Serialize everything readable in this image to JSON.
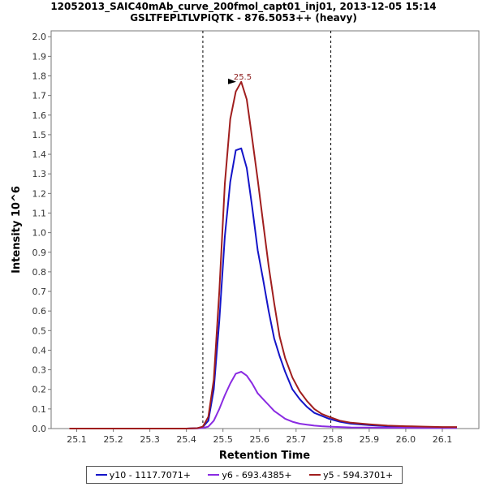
{
  "chart_data": {
    "type": "line",
    "title": "12052013_SAIC40mAb_curve_200fmol_capt01_inj01, 2013-12-05 15:14",
    "subtitle": "GSLTFEPLTLVPIQTK - 876.5053++ (heavy)",
    "xlabel": "Retention Time",
    "ylabel": "Intensity 10^6",
    "xlim": [
      25.03,
      26.2
    ],
    "ylim": [
      0,
      2.03
    ],
    "xticks": [
      25.1,
      25.2,
      25.3,
      25.4,
      25.5,
      25.6,
      25.7,
      25.8,
      25.9,
      26.0,
      26.1
    ],
    "yticks": [
      0.0,
      0.1,
      0.2,
      0.3,
      0.4,
      0.5,
      0.6,
      0.7,
      0.8,
      0.9,
      1.0,
      1.1,
      1.2,
      1.3,
      1.4,
      1.5,
      1.6,
      1.7,
      1.8,
      1.9,
      2.0
    ],
    "boundaries": [
      25.445,
      25.795
    ],
    "peak_annotation": {
      "label": "25.5",
      "x": 25.545,
      "y": 1.77
    },
    "x": [
      25.08,
      25.2,
      25.3,
      25.4,
      25.43,
      25.445,
      25.46,
      25.475,
      25.49,
      25.505,
      25.52,
      25.535,
      25.55,
      25.565,
      25.58,
      25.595,
      25.61,
      25.625,
      25.64,
      25.655,
      25.67,
      25.69,
      25.71,
      25.73,
      25.75,
      25.77,
      25.79,
      25.82,
      25.85,
      25.9,
      25.95,
      26.0,
      26.05,
      26.1,
      26.14
    ],
    "series": [
      {
        "name": "y10 - 1117.7071+",
        "color": "#1414c8",
        "values": [
          0.0,
          0.0,
          0.0,
          0.0,
          0.002,
          0.008,
          0.04,
          0.2,
          0.55,
          0.98,
          1.26,
          1.42,
          1.43,
          1.33,
          1.13,
          0.91,
          0.76,
          0.6,
          0.46,
          0.37,
          0.29,
          0.2,
          0.15,
          0.11,
          0.08,
          0.065,
          0.05,
          0.035,
          0.025,
          0.018,
          0.012,
          0.01,
          0.008,
          0.006,
          0.006
        ]
      },
      {
        "name": "y6 - 693.4385+",
        "color": "#8a2be2",
        "values": [
          0.0,
          0.0,
          0.0,
          0.0,
          0.001,
          0.003,
          0.01,
          0.04,
          0.1,
          0.17,
          0.23,
          0.28,
          0.29,
          0.27,
          0.23,
          0.18,
          0.15,
          0.12,
          0.09,
          0.07,
          0.05,
          0.035,
          0.025,
          0.02,
          0.015,
          0.012,
          0.01,
          0.008,
          0.006,
          0.005,
          0.004,
          0.004,
          0.003,
          0.003,
          0.003
        ]
      },
      {
        "name": "y5 - 594.3701+",
        "color": "#a01e1e",
        "values": [
          0.0,
          0.0,
          0.0,
          0.0,
          0.002,
          0.01,
          0.06,
          0.25,
          0.7,
          1.25,
          1.58,
          1.72,
          1.77,
          1.68,
          1.48,
          1.27,
          1.05,
          0.83,
          0.64,
          0.47,
          0.36,
          0.26,
          0.19,
          0.14,
          0.1,
          0.075,
          0.06,
          0.04,
          0.03,
          0.022,
          0.015,
          0.012,
          0.01,
          0.008,
          0.008
        ]
      }
    ]
  }
}
